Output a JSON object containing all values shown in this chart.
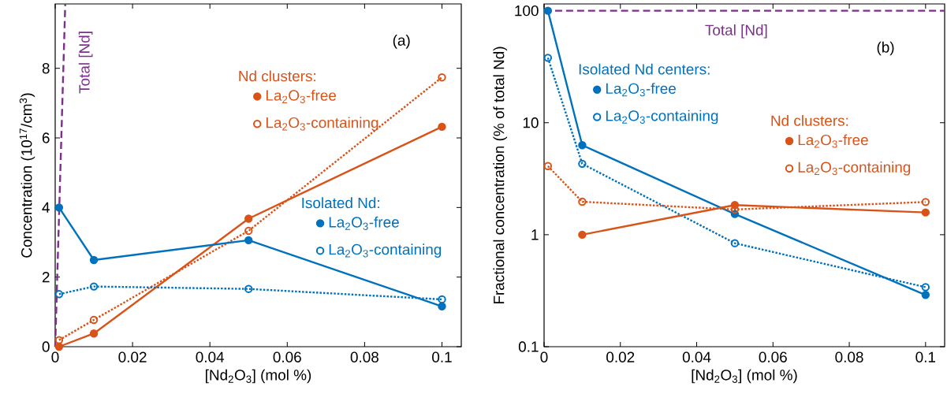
{
  "chart_data": [
    {
      "type": "line",
      "xlabel": "[Nd$_{2}$O$_{3}$] (mol %)",
      "ylabel": "Concentration (10$^{17}$/cm$^{3}$)",
      "xlim": [
        0,
        0.105
      ],
      "ylim": [
        0,
        9.85
      ],
      "xticks": [
        0,
        0.02,
        0.04,
        0.06,
        0.08,
        0.1
      ],
      "yticks": [
        0,
        2,
        4,
        6,
        8
      ],
      "annotations": [
        "(a)",
        "Nd clusters:",
        "Isolated Nd:"
      ],
      "legend": "right",
      "series": [
        {
          "name": "Total [Nd]",
          "color": "#7e2f8e",
          "x": [
            0,
            0.0026
          ],
          "values": [
            0,
            9.85
          ],
          "marker": "none",
          "line_style": "dashed"
        },
        {
          "name": "La$_{2}$O$_{3}$-free",
          "color": "#d95319",
          "x": [
            0.001,
            0.01,
            0.05,
            0.1
          ],
          "values": [
            0,
            0.38,
            3.68,
            6.32
          ],
          "marker": "circle",
          "line_style": "solid"
        },
        {
          "name": "La$_{2}$O$_{3}$-containing",
          "color": "#d95319",
          "x": [
            0.001,
            0.01,
            0.05,
            0.1
          ],
          "values": [
            0.19,
            0.77,
            3.33,
            7.74
          ],
          "marker": "circle",
          "line_style": "dotted"
        },
        {
          "name": "La$_{2}$O$_{3}$-free",
          "color": "#0072bd",
          "x": [
            0.001,
            0.01,
            0.05,
            0.1
          ],
          "values": [
            4.0,
            2.49,
            3.06,
            1.16
          ],
          "marker": "circle",
          "line_style": "solid"
        },
        {
          "name": "La$_{2}$O$_{3}$-containing",
          "color": "#0072bd",
          "x": [
            0.001,
            0.01,
            0.05,
            0.1
          ],
          "values": [
            1.51,
            1.73,
            1.66,
            1.36
          ],
          "marker": "circle",
          "line_style": "dotted"
        }
      ]
    },
    {
      "type": "line",
      "xlabel": "[Nd$_{2}$O$_{3}$] (mol %)",
      "ylabel": "Fractional concentration (% of total Nd)",
      "log": "y",
      "xlim": [
        0,
        0.105
      ],
      "ylim": [
        0.1,
        115
      ],
      "xticks": [
        0,
        0.02,
        0.04,
        0.06,
        0.08,
        0.1
      ],
      "yticks": [
        0.1,
        1,
        10,
        100
      ],
      "annotations": [
        "(b)",
        "Isolated Nd centers:",
        "Nd clusters:"
      ],
      "legend": "top",
      "ref_lines": [
        {
          "axis": "y",
          "value": 100,
          "label": "Total [Nd]",
          "color": "#7e2f8e",
          "line_style": "dashed"
        }
      ],
      "x": [
        0.001,
        0.01,
        0.05,
        0.1
      ],
      "series": [
        {
          "name": "La$_{2}$O$_{3}$-free",
          "color": "#0072bd",
          "values": [
            100,
            6.3,
            1.53,
            0.29
          ],
          "marker": "circle",
          "line_style": "solid"
        },
        {
          "name": "La$_{2}$O$_{3}$-containing",
          "color": "#0072bd",
          "values": [
            38,
            4.3,
            0.84,
            0.34
          ],
          "marker": "circle",
          "line_style": "dotted"
        },
        {
          "name": "La$_{2}$O$_{3}$-free",
          "color": "#d95319",
          "values": [
            null,
            1.0,
            1.84,
            1.58
          ],
          "marker": "circle",
          "line_style": "solid"
        },
        {
          "name": "La$_{2}$O$_{3}$-containing",
          "color": "#d95319",
          "values": [
            4.1,
            1.97,
            1.68,
            1.96
          ],
          "marker": "circle",
          "line_style": "dotted"
        }
      ]
    }
  ]
}
